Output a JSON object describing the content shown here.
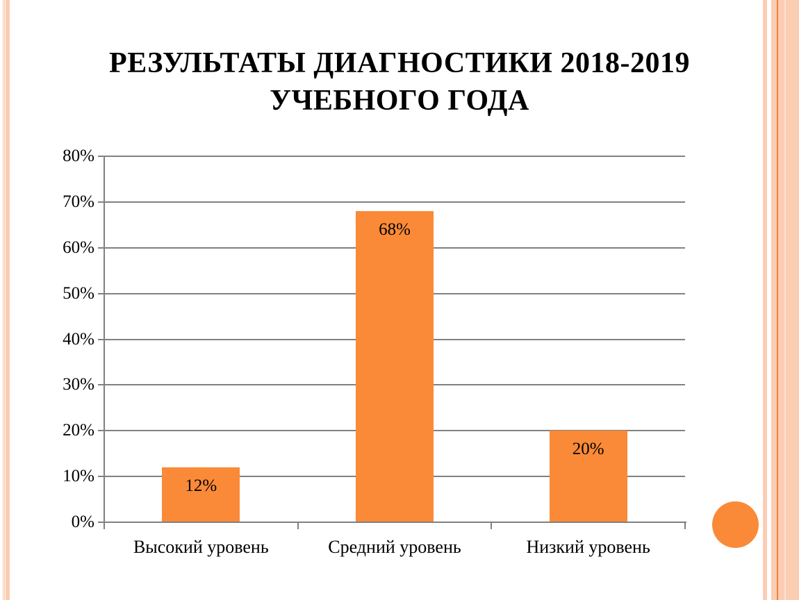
{
  "slide": {
    "title": "РЕЗУЛЬТАТЫ ДИАГНОСТИКИ 2018-2019 УЧЕБНОГО ГОДА"
  },
  "chart_data": {
    "type": "bar",
    "title": "РЕЗУЛЬТАТЫ ДИАГНОСТИКИ 2018-2019 УЧЕБНОГО ГОДА",
    "categories": [
      "Высокий уровень",
      "Средний уровень",
      "Низкий уровень"
    ],
    "values": [
      12,
      68,
      20
    ],
    "value_labels": [
      "12%",
      "68%",
      "20%"
    ],
    "xlabel": "",
    "ylabel": "",
    "ylim": [
      0,
      80
    ],
    "y_tick_step": 10,
    "y_tick_labels": [
      "0%",
      "10%",
      "20%",
      "30%",
      "40%",
      "50%",
      "60%",
      "70%",
      "80%"
    ],
    "grid": true,
    "legend": "none",
    "colors": {
      "bar": "#FA8A38",
      "gridline": "#808080",
      "axis": "#808080",
      "label_text": "#000000"
    }
  },
  "decor": {
    "stripe_color": "#FBCDB2",
    "stripe_color_light": "#FDE2D3",
    "stripe_color_dark": "#F08240",
    "circle_color": "#FA8A38"
  }
}
